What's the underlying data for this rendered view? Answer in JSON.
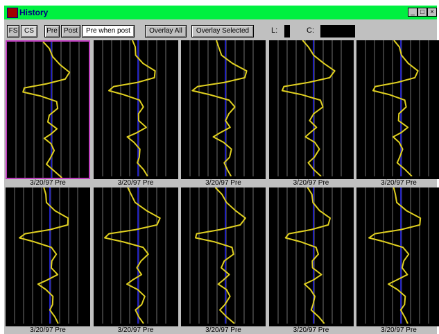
{
  "window": {
    "title": "History",
    "controls": [
      "_",
      "□",
      "×"
    ]
  },
  "toolbar": {
    "buttons": [
      "FS",
      "CS",
      "Pre",
      "Post",
      "Pre when post",
      "Overlay All",
      "Overlay Selected"
    ],
    "l_label": "L:",
    "c_label": "C:"
  },
  "panels": [
    {
      "caption": "3/20/97 Pre"
    },
    {
      "caption": "3/20/97 Pre"
    },
    {
      "caption": "3/20/97 Pre"
    },
    {
      "caption": "3/20/97 Pre"
    },
    {
      "caption": "3/20/97 Pre"
    },
    {
      "caption": "3/20/97 Pre"
    },
    {
      "caption": "3/20/97 Pre"
    },
    {
      "caption": "3/20/97 Pre"
    },
    {
      "caption": "3/20/97 Pre"
    },
    {
      "caption": "3/20/97 Pre"
    }
  ]
}
